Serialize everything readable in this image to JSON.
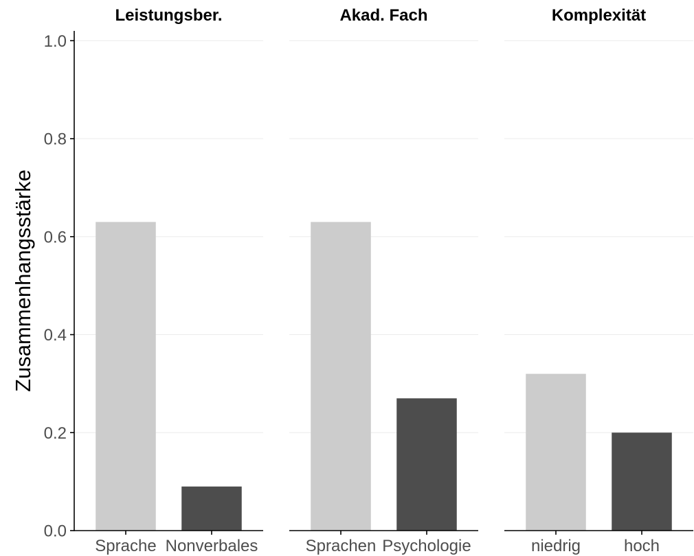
{
  "chart_data": {
    "type": "bar",
    "xlabel": "",
    "ylabel": "Zusammenhangsstärke",
    "ylim": [
      0,
      1.02
    ],
    "yticks": [
      "0.0",
      "0.2",
      "0.4",
      "0.6",
      "0.8",
      "1.0"
    ],
    "grid": true,
    "legend": false,
    "bar_colors": [
      "#cccccc",
      "#4d4d4d"
    ],
    "facets": [
      {
        "title": "Leistungsber.",
        "categories": [
          "Sprache",
          "Nonverbales"
        ],
        "values": [
          0.63,
          0.09
        ]
      },
      {
        "title": "Akad. Fach",
        "categories": [
          "Sprachen",
          "Psychologie"
        ],
        "values": [
          0.63,
          0.27
        ]
      },
      {
        "title": "Komplexität",
        "categories": [
          "niedrig",
          "hoch"
        ],
        "values": [
          0.32,
          0.2
        ]
      }
    ]
  },
  "colors": {
    "axis": "#000000",
    "tick_label": "#4d4d4d",
    "grid": "#ebebeb",
    "title": "#000000"
  }
}
